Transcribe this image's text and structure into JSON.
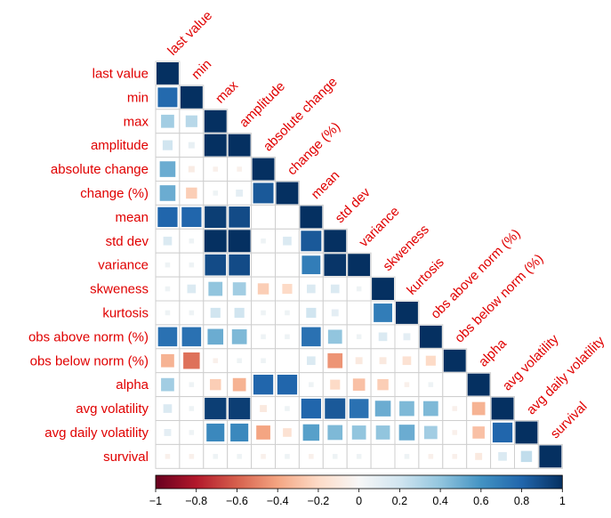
{
  "chart_data": {
    "type": "heatmap",
    "style": "correlation matrix, lower triangle, square glyphs sized by |r|",
    "variables": [
      "last value",
      "min",
      "max",
      "amplitude",
      "absolute change",
      "change (%)",
      "mean",
      "std dev",
      "variance",
      "skweness",
      "kurtosis",
      "obs above norm (%)",
      "obs below norm (%)",
      "alpha",
      "avg volatility",
      "avg daily volatility",
      "survival"
    ],
    "matrix": [
      [
        1.0
      ],
      [
        0.78,
        1.0
      ],
      [
        0.35,
        0.28,
        1.0
      ],
      [
        0.2,
        0.08,
        1.0,
        1.0
      ],
      [
        0.5,
        -0.08,
        -0.05,
        -0.05,
        1.0
      ],
      [
        0.5,
        -0.25,
        0.05,
        0.1,
        0.85,
        1.0
      ],
      [
        0.8,
        0.8,
        0.95,
        0.9,
        0.0,
        0.0,
        1.0
      ],
      [
        0.15,
        0.05,
        1.0,
        1.0,
        0.05,
        0.15,
        0.85,
        1.0
      ],
      [
        0.05,
        0.05,
        0.9,
        0.9,
        0.0,
        0.0,
        0.7,
        0.98,
        1.0
      ],
      [
        0.05,
        0.15,
        0.4,
        0.35,
        -0.25,
        -0.2,
        0.15,
        0.15,
        0.05,
        1.0
      ],
      [
        0.05,
        0.05,
        0.2,
        0.2,
        0.05,
        0.05,
        0.2,
        0.1,
        0.0,
        0.7,
        1.0
      ],
      [
        0.75,
        0.75,
        0.5,
        0.45,
        0.05,
        0.05,
        0.75,
        0.4,
        0.05,
        0.15,
        0.1,
        1.0
      ],
      [
        -0.35,
        -0.55,
        -0.05,
        0.05,
        0.05,
        0.0,
        0.15,
        -0.45,
        -0.1,
        -0.1,
        -0.15,
        -0.2,
        1.0
      ],
      [
        0.35,
        0.05,
        -0.25,
        -0.35,
        0.8,
        0.8,
        0.05,
        -0.2,
        -0.3,
        -0.25,
        -0.05,
        0.05,
        0.0,
        1.0
      ],
      [
        0.15,
        0.05,
        0.95,
        0.95,
        -0.1,
        0.05,
        0.8,
        0.85,
        0.75,
        0.5,
        0.45,
        0.45,
        -0.05,
        -0.35,
        1.0
      ],
      [
        0.1,
        0.05,
        0.65,
        0.65,
        -0.4,
        -0.15,
        0.55,
        0.45,
        0.4,
        0.4,
        0.5,
        0.35,
        -0.05,
        -0.3,
        0.8,
        1.0
      ],
      [
        -0.05,
        -0.05,
        0.05,
        0.05,
        -0.05,
        0.05,
        -0.05,
        0.05,
        0.05,
        0.0,
        0.05,
        -0.05,
        -0.05,
        -0.1,
        0.15,
        0.25,
        1.0
      ]
    ],
    "colorbar": {
      "min": -1,
      "max": 1,
      "ticks": [
        "−1",
        "−0.8",
        "−0.6",
        "−0.4",
        "−0.2",
        "0",
        "0.2",
        "0.4",
        "0.6",
        "0.8",
        "1"
      ]
    },
    "colors": {
      "negative_strong": "#67001f",
      "positive_strong": "#053061",
      "neutral": "#f7f7f7",
      "labels": "#e00000",
      "grid": "#cfcfcf"
    }
  }
}
